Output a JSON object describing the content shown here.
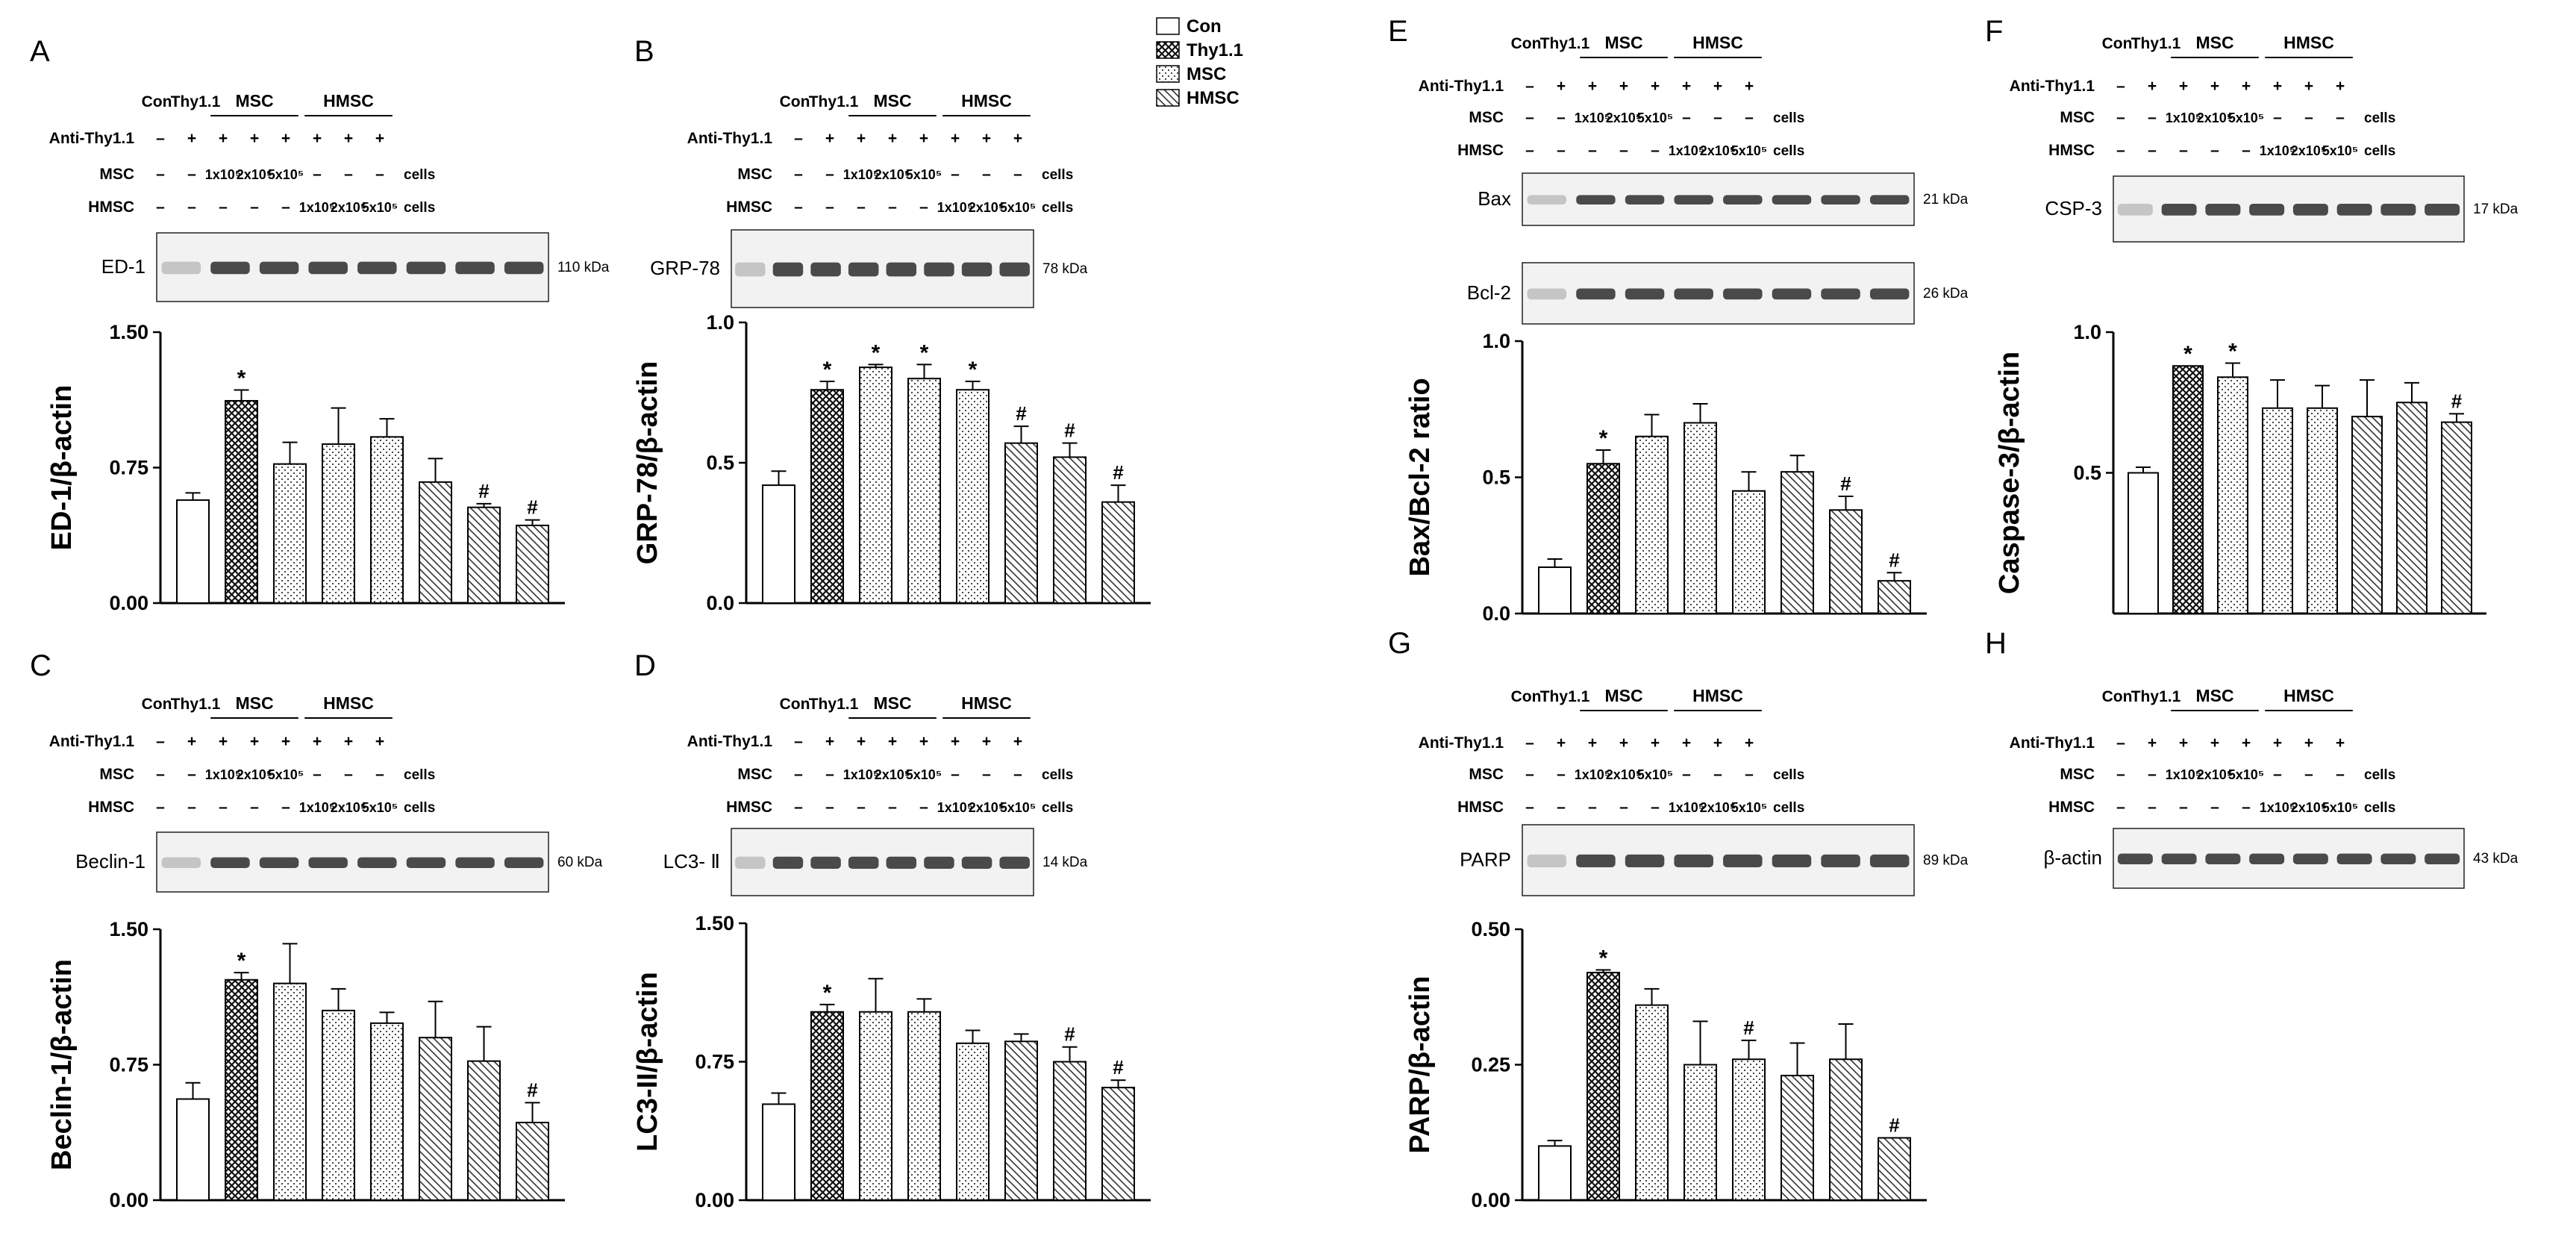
{
  "legend": {
    "items": [
      "Con",
      "Thy1.1",
      "MSC",
      "HMSC"
    ]
  },
  "treatment": {
    "con": "Con",
    "thy": "Thy1.1",
    "msc": "MSC",
    "hmsc": "HMSC",
    "anti_label": "Anti-Thy1.1",
    "msc_label": "MSC",
    "hmsc_label": "HMSC",
    "cells": "cells",
    "plus": "+",
    "minus": "–",
    "d1": "1x10⁵",
    "d2": "2x10⁵",
    "d3": "5x10⁵"
  },
  "markers": {
    "star": "*",
    "hash": "#"
  },
  "chart_data": [
    {
      "id": "A",
      "type": "bar",
      "panel_letter": "A",
      "blot_label": "ED-1",
      "kda": "110 kDa",
      "ylabel": "ED-1/β-actin",
      "yticks": [
        "0.00",
        "0.75",
        "1.50"
      ],
      "ylim": [
        0,
        1.5
      ],
      "categories": [
        "Con",
        "Thy1.1",
        "MSC 1x10⁵",
        "MSC 2x10⁵",
        "MSC 5x10⁵",
        "HMSC 1x10⁵",
        "HMSC 2x10⁵",
        "HMSC 5x10⁵"
      ],
      "values": [
        0.57,
        1.12,
        0.77,
        0.88,
        0.92,
        0.67,
        0.53,
        0.43
      ],
      "errors": [
        0.04,
        0.06,
        0.12,
        0.2,
        0.1,
        0.13,
        0.02,
        0.03
      ],
      "annotations": [
        "",
        "*",
        "",
        "",
        "",
        "",
        "#",
        "#"
      ]
    },
    {
      "id": "B",
      "type": "bar",
      "panel_letter": "B",
      "blot_label": "GRP-78",
      "kda": "78 kDa",
      "ylabel": "GRP-78/β-actin",
      "yticks": [
        "0.0",
        "0.5",
        "1.0"
      ],
      "ylim": [
        0,
        1.0
      ],
      "categories": [
        "Con",
        "Thy1.1",
        "MSC 1x10⁵",
        "MSC 2x10⁵",
        "MSC 5x10⁵",
        "HMSC 1x10⁵",
        "HMSC 2x10⁵",
        "HMSC 5x10⁵"
      ],
      "values": [
        0.42,
        0.76,
        0.84,
        0.8,
        0.76,
        0.57,
        0.52,
        0.36
      ],
      "errors": [
        0.05,
        0.03,
        0.01,
        0.05,
        0.03,
        0.06,
        0.05,
        0.06
      ],
      "annotations": [
        "",
        "*",
        "*",
        "*",
        "*",
        "#",
        "#",
        "#"
      ]
    },
    {
      "id": "C",
      "type": "bar",
      "panel_letter": "C",
      "blot_label": "Beclin-1",
      "kda": "60 kDa",
      "ylabel": "Beclin-1/β-actin",
      "yticks": [
        "0.00",
        "0.75",
        "1.50"
      ],
      "ylim": [
        0,
        1.5
      ],
      "categories": [
        "Con",
        "Thy1.1",
        "MSC 1x10⁵",
        "MSC 2x10⁵",
        "MSC 5x10⁵",
        "HMSC 1x10⁵",
        "HMSC 2x10⁵",
        "HMSC 5x10⁵"
      ],
      "values": [
        0.56,
        1.22,
        1.2,
        1.05,
        0.98,
        0.9,
        0.77,
        0.43
      ],
      "errors": [
        0.09,
        0.04,
        0.22,
        0.12,
        0.06,
        0.2,
        0.19,
        0.11
      ],
      "annotations": [
        "",
        "*",
        "",
        "",
        "",
        "",
        "",
        "#"
      ]
    },
    {
      "id": "D",
      "type": "bar",
      "panel_letter": "D",
      "blot_label": "LC3- Ⅱ",
      "kda": "14 kDa",
      "ylabel": "LC3-II/β-actin",
      "yticks": [
        "0.00",
        "0.75",
        "1.50"
      ],
      "ylim": [
        0,
        1.5
      ],
      "categories": [
        "Con",
        "Thy1.1",
        "MSC 1x10⁵",
        "MSC 2x10⁵",
        "MSC 5x10⁵",
        "HMSC 1x10⁵",
        "HMSC 2x10⁵",
        "HMSC 5x10⁵"
      ],
      "values": [
        0.52,
        1.02,
        1.02,
        1.02,
        0.85,
        0.86,
        0.75,
        0.61
      ],
      "errors": [
        0.06,
        0.04,
        0.18,
        0.07,
        0.07,
        0.04,
        0.08,
        0.04
      ],
      "annotations": [
        "",
        "*",
        "",
        "",
        "",
        "",
        "#",
        "#"
      ]
    },
    {
      "id": "E",
      "type": "bar",
      "panel_letter": "E",
      "blot_label": "Bax",
      "blot_label2": "Bcl-2",
      "kda": "21 kDa",
      "kda2": "26 kDa",
      "ylabel": "Bax/Bcl-2 ratio",
      "yticks": [
        "0.0",
        "0.5",
        "1.0"
      ],
      "ylim": [
        0,
        1.0
      ],
      "categories": [
        "Con",
        "Thy1.1",
        "MSC 1x10⁵",
        "MSC 2x10⁵",
        "MSC 5x10⁵",
        "HMSC 1x10⁵",
        "HMSC 2x10⁵",
        "HMSC 5x10⁵"
      ],
      "values": [
        0.17,
        0.55,
        0.65,
        0.7,
        0.45,
        0.52,
        0.38,
        0.12
      ],
      "errors": [
        0.03,
        0.05,
        0.08,
        0.07,
        0.07,
        0.06,
        0.05,
        0.03
      ],
      "annotations": [
        "",
        "*",
        "",
        "",
        "",
        "",
        "#",
        "#"
      ]
    },
    {
      "id": "F",
      "type": "bar",
      "panel_letter": "F",
      "blot_label": "CSP-3",
      "kda": "17 kDa",
      "ylabel": "Caspase-3/β-actin",
      "yticks": [
        "0.5",
        "1.0"
      ],
      "ylim": [
        0,
        1.0
      ],
      "categories": [
        "Con",
        "Thy1.1",
        "MSC 1x10⁵",
        "MSC 2x10⁵",
        "MSC 5x10⁵",
        "HMSC 1x10⁵",
        "HMSC 2x10⁵",
        "HMSC 5x10⁵"
      ],
      "values": [
        0.5,
        0.88,
        0.84,
        0.73,
        0.73,
        0.7,
        0.75,
        0.68
      ],
      "errors": [
        0.02,
        0.0,
        0.05,
        0.1,
        0.08,
        0.13,
        0.07,
        0.03
      ],
      "annotations": [
        "",
        "*",
        "*",
        "",
        "",
        "",
        "",
        "#"
      ]
    },
    {
      "id": "G",
      "type": "bar",
      "panel_letter": "G",
      "blot_label": "PARP",
      "kda": "89 kDa",
      "ylabel": "PARP/β-actin",
      "yticks": [
        "0.00",
        "0.25",
        "0.50"
      ],
      "ylim": [
        0,
        0.5
      ],
      "categories": [
        "Con",
        "Thy1.1",
        "MSC 1x10⁵",
        "MSC 2x10⁵",
        "MSC 5x10⁵",
        "HMSC 1x10⁵",
        "HMSC 2x10⁵",
        "HMSC 5x10⁵"
      ],
      "values": [
        0.1,
        0.42,
        0.36,
        0.25,
        0.26,
        0.23,
        0.26,
        0.115
      ],
      "errors": [
        0.01,
        0.005,
        0.03,
        0.08,
        0.035,
        0.06,
        0.065,
        0.0
      ],
      "annotations": [
        "",
        "*",
        "",
        "",
        "#",
        "",
        "",
        "#"
      ]
    }
  ],
  "blot_only": {
    "panel_letter": "H",
    "blot_label": "β-actin",
    "kda": "43 kDa"
  }
}
